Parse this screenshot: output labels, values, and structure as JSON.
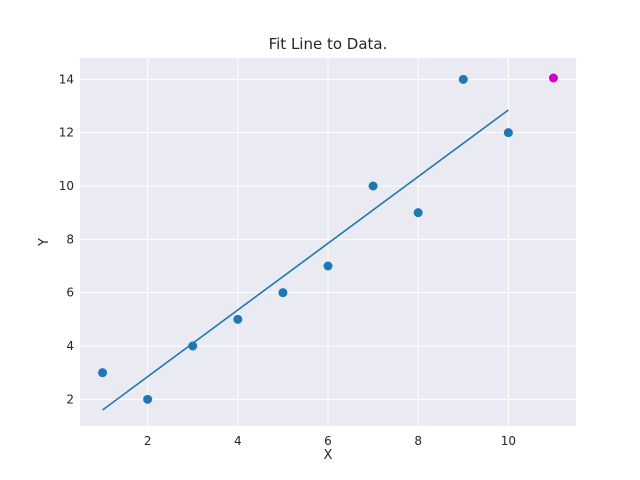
{
  "chart_data": {
    "type": "scatter",
    "title": "Fit Line to Data.",
    "xlabel": "X",
    "ylabel": "Y",
    "xlim": [
      0.5,
      11.5
    ],
    "ylim": [
      1.0,
      14.8
    ],
    "xticks": [
      2,
      4,
      6,
      8,
      10
    ],
    "yticks": [
      2,
      4,
      6,
      8,
      10,
      12,
      14
    ],
    "grid": true,
    "points": [
      {
        "x": 1,
        "y": 3
      },
      {
        "x": 2,
        "y": 2
      },
      {
        "x": 3,
        "y": 4
      },
      {
        "x": 4,
        "y": 5
      },
      {
        "x": 5,
        "y": 6
      },
      {
        "x": 6,
        "y": 7
      },
      {
        "x": 7,
        "y": 10
      },
      {
        "x": 8,
        "y": 9
      },
      {
        "x": 9,
        "y": 14
      },
      {
        "x": 10,
        "y": 12
      }
    ],
    "fit_line": {
      "x": [
        1,
        10
      ],
      "y": [
        1.6,
        12.85
      ]
    },
    "highlight_point": {
      "x": 11,
      "y": 14.05
    },
    "colors": {
      "background": "#eaeaf2",
      "grid": "#ffffff",
      "points": "#1f77b4",
      "line": "#1f77b4",
      "highlight": "#cc00cc"
    }
  }
}
